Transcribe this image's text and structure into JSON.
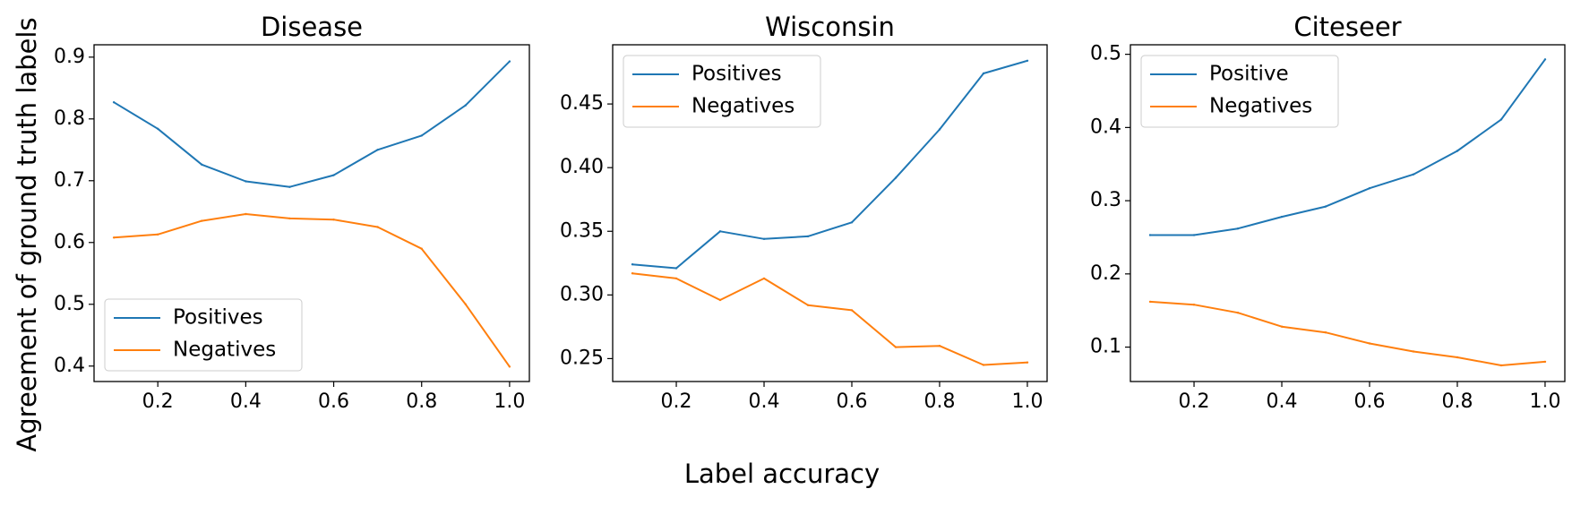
{
  "figure": {
    "ylabel": "Agreement of ground truth labels",
    "xlabel": "Label accuracy"
  },
  "colors": {
    "positives": "#1f77b4",
    "negatives": "#ff7f0e"
  },
  "chart_data": [
    {
      "type": "line",
      "title": "Disease",
      "x": [
        0.1,
        0.2,
        0.3,
        0.4,
        0.5,
        0.6,
        0.7,
        0.8,
        0.9,
        1.0
      ],
      "xticks": [
        "0.2",
        "0.4",
        "0.6",
        "0.8",
        "1.0"
      ],
      "xlim": [
        0.055,
        1.045
      ],
      "ylim": [
        0.375,
        0.92
      ],
      "yticks": [
        "0.4",
        "0.5",
        "0.6",
        "0.7",
        "0.8",
        "0.9"
      ],
      "legend_loc": "lower-left",
      "series": [
        {
          "name": "Positives",
          "values": [
            0.827,
            0.784,
            0.726,
            0.699,
            0.69,
            0.709,
            0.75,
            0.773,
            0.822,
            0.893
          ]
        },
        {
          "name": "Negatives",
          "values": [
            0.608,
            0.613,
            0.635,
            0.646,
            0.639,
            0.637,
            0.625,
            0.59,
            0.5,
            0.399
          ]
        }
      ]
    },
    {
      "type": "line",
      "title": "Wisconsin",
      "x": [
        0.1,
        0.2,
        0.3,
        0.4,
        0.5,
        0.6,
        0.7,
        0.8,
        0.9,
        1.0
      ],
      "xticks": [
        "0.2",
        "0.4",
        "0.6",
        "0.8",
        "1.0"
      ],
      "xlim": [
        0.055,
        1.045
      ],
      "ylim": [
        0.232,
        0.4965
      ],
      "yticks": [
        "0.25",
        "0.30",
        "0.35",
        "0.40",
        "0.45"
      ],
      "legend_loc": "upper-left",
      "series": [
        {
          "name": "Positives",
          "values": [
            0.324,
            0.321,
            0.35,
            0.344,
            0.346,
            0.357,
            0.392,
            0.43,
            0.474,
            0.484
          ]
        },
        {
          "name": "Negatives",
          "values": [
            0.317,
            0.313,
            0.296,
            0.313,
            0.292,
            0.288,
            0.259,
            0.26,
            0.245,
            0.247
          ]
        }
      ]
    },
    {
      "type": "line",
      "title": "Citeseer",
      "x": [
        0.1,
        0.2,
        0.3,
        0.4,
        0.5,
        0.6,
        0.7,
        0.8,
        0.9,
        1.0
      ],
      "xticks": [
        "0.2",
        "0.4",
        "0.6",
        "0.8",
        "1.0"
      ],
      "xlim": [
        0.055,
        1.045
      ],
      "ylim": [
        0.053,
        0.513
      ],
      "yticks": [
        "0.1",
        "0.2",
        "0.3",
        "0.4",
        "0.5"
      ],
      "legend_loc": "upper-left",
      "series": [
        {
          "name": "Positive",
          "values": [
            0.253,
            0.253,
            0.262,
            0.278,
            0.292,
            0.317,
            0.336,
            0.368,
            0.411,
            0.493
          ]
        },
        {
          "name": "Negatives",
          "values": [
            0.162,
            0.158,
            0.147,
            0.128,
            0.12,
            0.105,
            0.094,
            0.086,
            0.075,
            0.08
          ]
        }
      ]
    }
  ]
}
